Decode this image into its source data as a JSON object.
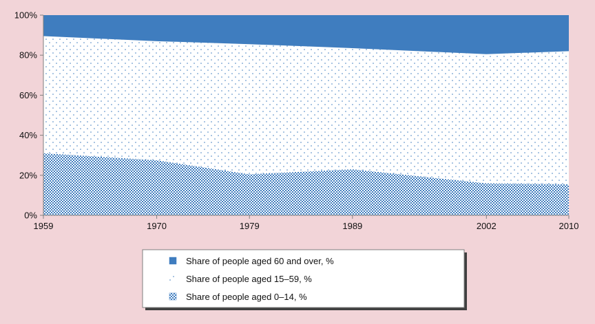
{
  "chart_data": {
    "type": "area",
    "stacked": true,
    "normalized": true,
    "x": [
      1959,
      1970,
      1979,
      1989,
      2002,
      2010
    ],
    "x_tick_labels": [
      "1959",
      "1970",
      "1979",
      "1989",
      "2002",
      "2010"
    ],
    "y_tick_labels": [
      "0%",
      "20%",
      "40%",
      "60%",
      "80%",
      "100%"
    ],
    "ylim": [
      0,
      100
    ],
    "series": [
      {
        "name": "Share of people aged 0–14, %",
        "values": [
          31,
          27.5,
          20.5,
          23,
          16,
          15.5
        ],
        "color": "#3f7dbf",
        "pattern": "checker"
      },
      {
        "name": "Share of people aged 15–59, %",
        "values": [
          58.5,
          59.5,
          65,
          60.5,
          64.5,
          66.5
        ],
        "color": "#ffffff",
        "pattern": "dots"
      },
      {
        "name": "Share of people aged 60 and over, %",
        "values": [
          10.5,
          13,
          14.5,
          16.5,
          19.5,
          18
        ],
        "color": "#3f7dbf",
        "pattern": "solid"
      }
    ],
    "legend_order": [
      2,
      1,
      0
    ],
    "legend_position": "bottom-center",
    "grid": false
  }
}
